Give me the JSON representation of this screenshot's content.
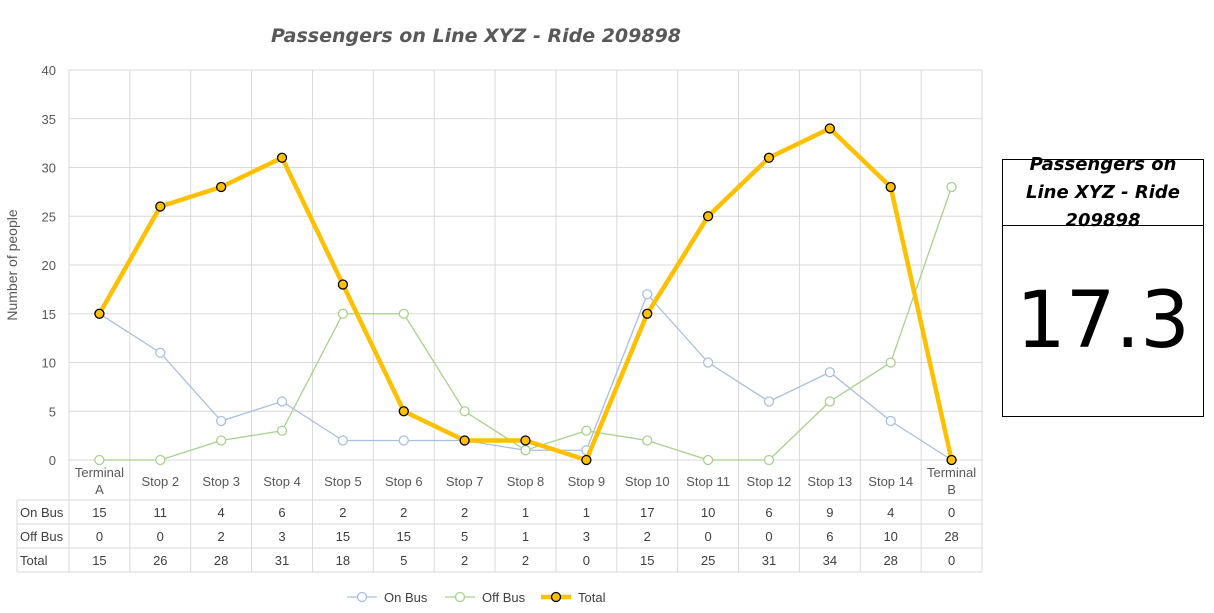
{
  "chart_data": {
    "type": "line",
    "title": "Passengers on Line XYZ - Ride 209898",
    "ylabel": "Number of people",
    "xlabel": "",
    "ylim": [
      0,
      40
    ],
    "yticks": [
      0,
      5,
      10,
      15,
      20,
      25,
      30,
      35,
      40
    ],
    "grid": true,
    "legend": "bottom",
    "categories": [
      "Terminal A",
      "Stop 2",
      "Stop 3",
      "Stop 4",
      "Stop 5",
      "Stop 6",
      "Stop 7",
      "Stop 8",
      "Stop 9",
      "Stop 10",
      "Stop 11",
      "Stop 12",
      "Stop 13",
      "Stop 14",
      "Terminal B"
    ],
    "series": [
      {
        "name": "On Bus",
        "color": "#a9bfe0",
        "values": [
          15,
          11,
          4,
          6,
          2,
          2,
          2,
          1,
          1,
          17,
          10,
          6,
          9,
          4,
          0
        ]
      },
      {
        "name": "Off Bus",
        "color": "#a9d18e",
        "values": [
          0,
          0,
          2,
          3,
          15,
          15,
          5,
          1,
          3,
          2,
          0,
          0,
          6,
          10,
          28
        ]
      },
      {
        "name": "Total",
        "color": "#ffc000",
        "values": [
          15,
          26,
          28,
          31,
          18,
          5,
          2,
          2,
          0,
          15,
          25,
          31,
          34,
          28,
          0
        ]
      }
    ]
  },
  "kpi": {
    "title": "Passengers on Line XYZ - Ride 209898",
    "value": "17.3"
  }
}
